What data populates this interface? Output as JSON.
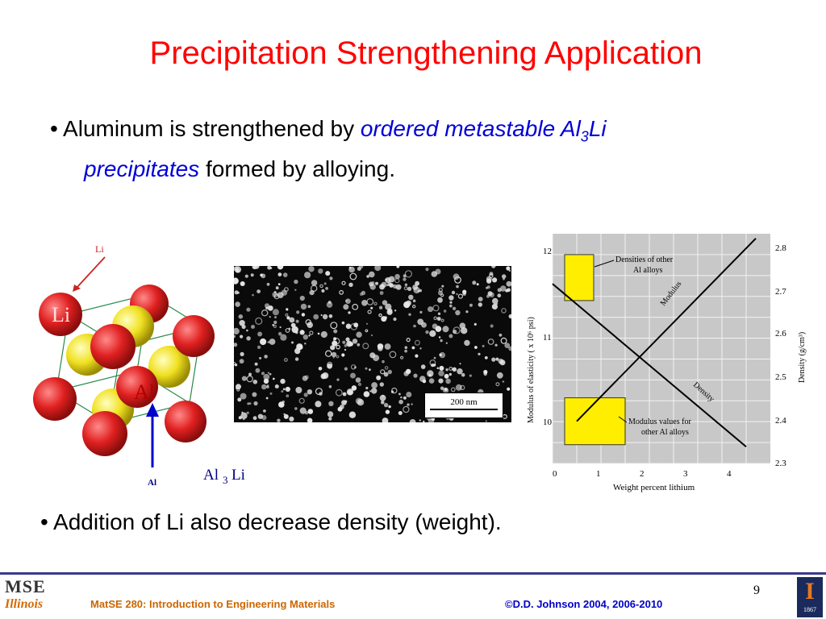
{
  "slide": {
    "title": "Precipitation Strengthening Application",
    "bullets": {
      "b1_prefix": "Aluminum is strengthened by ",
      "b1_em1": "ordered metastable Al",
      "b1_sub": "3",
      "b1_em2": "Li",
      "b1_em3": "precipitates",
      "b1_suffix": " formed by alloying.",
      "b2": "Addition of Li also decrease density (weight)."
    },
    "bullet_char": "•"
  },
  "crystal": {
    "li_small": "Li",
    "li_big": "Li",
    "al_big": "Al",
    "al_small": "Al",
    "formula_al": "Al",
    "formula_sub": "3",
    "formula_li": "Li",
    "colors": {
      "li": "#e02020",
      "al": "#f0e020",
      "arrow_red": "#cc2222",
      "arrow_blue": "#0000cc"
    }
  },
  "micrograph": {
    "scale_label": "200 nm"
  },
  "graph": {
    "ylabel_left": "Modulus of elasticity ( x 10⁶ psi)",
    "ylabel_right": "Density (g/cm³)",
    "xlabel": "Weight percent lithium",
    "x_ticks": [
      "0",
      "1",
      "2",
      "3",
      "4"
    ],
    "y_left_ticks": [
      "12",
      "11",
      "10"
    ],
    "y_right_ticks": [
      "2.8",
      "2.7",
      "2.6",
      "2.5",
      "2.4",
      "2.3"
    ],
    "label_modulus": "Modulus",
    "label_density": "Density",
    "note_density_l1": "Densities of other",
    "note_density_l2": "Al alloys",
    "note_modulus_l1": "Modulus values for",
    "note_modulus_l2": "other Al alloys"
  },
  "chart_data": {
    "type": "line",
    "xlabel": "Weight percent lithium",
    "ylabel": "Modulus of elasticity ( x 10⁶ psi)",
    "ylabel_right": "Density (g/cm³)",
    "xlim": [
      0,
      4.5
    ],
    "ylim": [
      9.8,
      12.25
    ],
    "ylim_right": [
      2.3,
      2.85
    ],
    "series": [
      {
        "name": "Modulus",
        "axis": "left",
        "x": [
          0.5,
          4.2
        ],
        "y": [
          10.25,
          12.2
        ]
      },
      {
        "name": "Density",
        "axis": "right",
        "x": [
          0,
          4.0
        ],
        "y": [
          2.73,
          2.34
        ]
      }
    ],
    "regions": [
      {
        "label": "Densities of other Al alloys",
        "x": [
          0.25,
          0.85
        ],
        "y_right": [
          2.69,
          2.8
        ]
      },
      {
        "label": "Modulus values for other Al alloys",
        "x": [
          0.25,
          1.5
        ],
        "y": [
          10.0,
          10.5
        ]
      }
    ],
    "grid": true
  },
  "footer": {
    "logo_top": "MSE",
    "logo_bottom": "Illinois",
    "course": "MatSE 280: Introduction to Engineering Materials",
    "copyright": "©D.D. Johnson 2004, 2006-2010",
    "page_number": "9",
    "badge_letter": "I",
    "badge_year": "1867"
  }
}
